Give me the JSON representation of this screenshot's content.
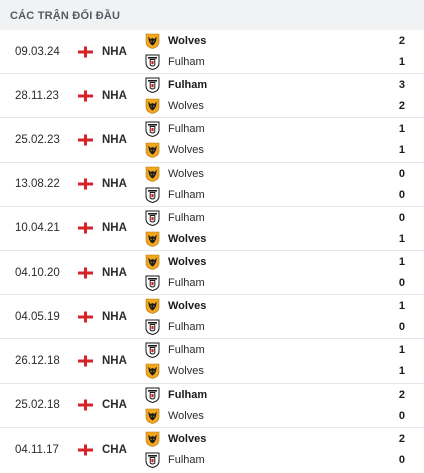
{
  "header": {
    "title": "CÁC TRẬN ĐỐI ĐẦU"
  },
  "matches": [
    {
      "date": "09.03.24",
      "competition": "NHA",
      "team1": {
        "name": "Wolves",
        "score": "2",
        "bold": true,
        "crest": "wolves"
      },
      "team2": {
        "name": "Fulham",
        "score": "1",
        "bold": false,
        "crest": "fulham"
      }
    },
    {
      "date": "28.11.23",
      "competition": "NHA",
      "team1": {
        "name": "Fulham",
        "score": "3",
        "bold": true,
        "crest": "fulham"
      },
      "team2": {
        "name": "Wolves",
        "score": "2",
        "bold": false,
        "crest": "wolves"
      }
    },
    {
      "date": "25.02.23",
      "competition": "NHA",
      "team1": {
        "name": "Fulham",
        "score": "1",
        "bold": false,
        "crest": "fulham"
      },
      "team2": {
        "name": "Wolves",
        "score": "1",
        "bold": false,
        "crest": "wolves"
      }
    },
    {
      "date": "13.08.22",
      "competition": "NHA",
      "team1": {
        "name": "Wolves",
        "score": "0",
        "bold": false,
        "crest": "wolves"
      },
      "team2": {
        "name": "Fulham",
        "score": "0",
        "bold": false,
        "crest": "fulham"
      }
    },
    {
      "date": "10.04.21",
      "competition": "NHA",
      "team1": {
        "name": "Fulham",
        "score": "0",
        "bold": false,
        "crest": "fulham"
      },
      "team2": {
        "name": "Wolves",
        "score": "1",
        "bold": true,
        "crest": "wolves"
      }
    },
    {
      "date": "04.10.20",
      "competition": "NHA",
      "team1": {
        "name": "Wolves",
        "score": "1",
        "bold": true,
        "crest": "wolves"
      },
      "team2": {
        "name": "Fulham",
        "score": "0",
        "bold": false,
        "crest": "fulham"
      }
    },
    {
      "date": "04.05.19",
      "competition": "NHA",
      "team1": {
        "name": "Wolves",
        "score": "1",
        "bold": true,
        "crest": "wolves"
      },
      "team2": {
        "name": "Fulham",
        "score": "0",
        "bold": false,
        "crest": "fulham"
      }
    },
    {
      "date": "26.12.18",
      "competition": "NHA",
      "team1": {
        "name": "Fulham",
        "score": "1",
        "bold": false,
        "crest": "fulham"
      },
      "team2": {
        "name": "Wolves",
        "score": "1",
        "bold": false,
        "crest": "wolves"
      }
    },
    {
      "date": "25.02.18",
      "competition": "CHA",
      "team1": {
        "name": "Fulham",
        "score": "2",
        "bold": true,
        "crest": "fulham"
      },
      "team2": {
        "name": "Wolves",
        "score": "0",
        "bold": false,
        "crest": "wolves"
      }
    },
    {
      "date": "04.11.17",
      "competition": "CHA",
      "team1": {
        "name": "Wolves",
        "score": "2",
        "bold": true,
        "crest": "wolves"
      },
      "team2": {
        "name": "Fulham",
        "score": "0",
        "bold": false,
        "crest": "fulham"
      }
    }
  ],
  "colors": {
    "wolves_gold": "#f3a71b",
    "wolves_dark": "#1e1e1e",
    "england_red": "#d7222a",
    "divider": "#e6e7ea",
    "header_bg": "#f1f2f4"
  }
}
